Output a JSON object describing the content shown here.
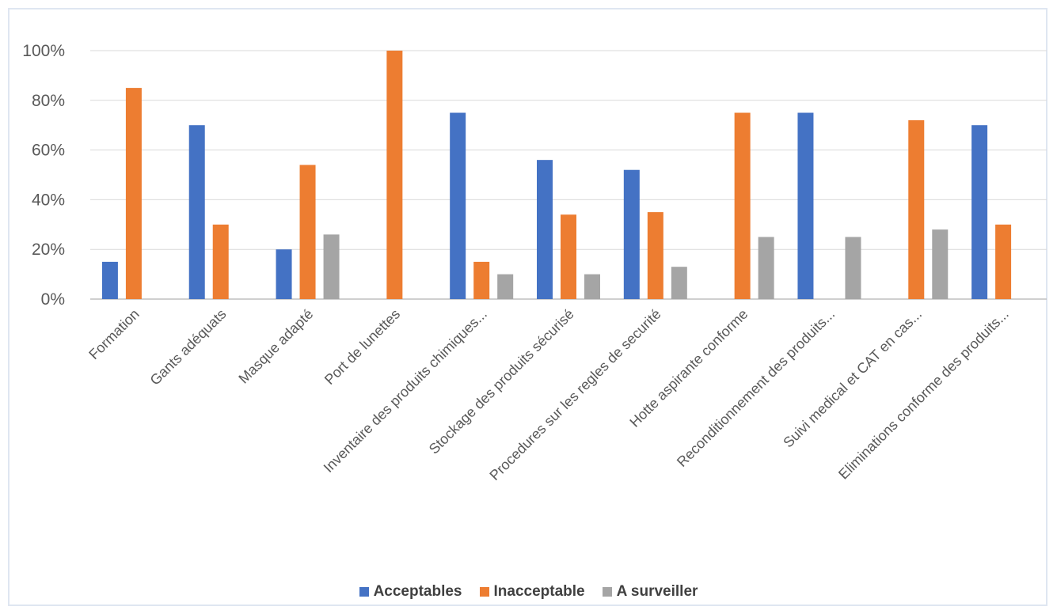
{
  "chart_data": {
    "type": "bar",
    "title": "",
    "xlabel": "",
    "ylabel": "",
    "ylim": [
      0,
      1.0
    ],
    "yticks": [
      "0%",
      "20%",
      "40%",
      "60%",
      "80%",
      "100%"
    ],
    "grid": true,
    "legend_position": "bottom",
    "categories": [
      "Formation",
      "Gants adéquats",
      "Masque adapté",
      "Port de lunettes",
      "Inventaire des produits chimiques...",
      "Stockage des produits sécurisé",
      "Procedures sur les regles de securité",
      "Hotte aspirante conforme",
      "Reconditionnement des produits...",
      "Suivi medical et CAT en cas...",
      "Eliminations conforme des produits..."
    ],
    "series": [
      {
        "name": "Acceptables",
        "color": "#4472c4",
        "values": [
          0.15,
          0.7,
          0.2,
          0,
          0.75,
          0.56,
          0.52,
          0,
          0.75,
          0,
          0.7
        ]
      },
      {
        "name": "Inacceptable",
        "color": "#ed7d31",
        "values": [
          0.85,
          0.3,
          0.54,
          1.0,
          0.15,
          0.34,
          0.35,
          0.75,
          0,
          0.72,
          0.3
        ]
      },
      {
        "name": "A surveiller",
        "color": "#a5a5a5",
        "values": [
          0,
          0,
          0.26,
          0,
          0.1,
          0.1,
          0.13,
          0.25,
          0.25,
          0.28,
          0
        ]
      }
    ]
  }
}
